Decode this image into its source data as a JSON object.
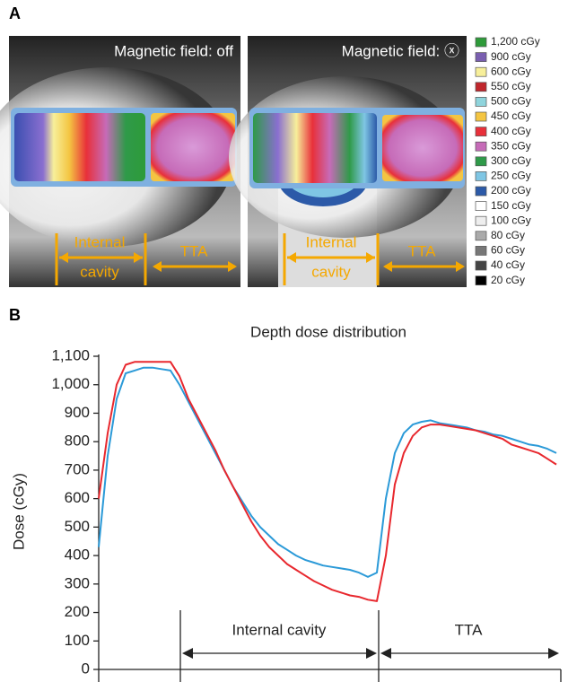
{
  "panels": {
    "a_label": "A",
    "b_label": "B"
  },
  "images": [
    {
      "title": "Magnetic field: off",
      "cavity_label": [
        "Internal",
        "cavity"
      ],
      "tta_label": "TTA"
    },
    {
      "title": "Magnetic field: ⓧ",
      "cavity_label": [
        "Internal",
        "cavity"
      ],
      "tta_label": "TTA"
    }
  ],
  "legend": [
    {
      "label": "1,200 cGy",
      "color": "#2e9b3a"
    },
    {
      "label": "900 cGy",
      "color": "#7a5fb0"
    },
    {
      "label": "600 cGy",
      "color": "#f7ef9a"
    },
    {
      "label": "550 cGy",
      "color": "#c0262c"
    },
    {
      "label": "500 cGy",
      "color": "#8fd4dc"
    },
    {
      "label": "450 cGy",
      "color": "#f4c542"
    },
    {
      "label": "400 cGy",
      "color": "#e8303a"
    },
    {
      "label": "350 cGy",
      "color": "#c66bb8"
    },
    {
      "label": "300 cGy",
      "color": "#2f9a49"
    },
    {
      "label": "250 cGy",
      "color": "#7fc6e4"
    },
    {
      "label": "200 cGy",
      "color": "#2c5aa8"
    },
    {
      "label": "150 cGy",
      "color": "#ffffff"
    },
    {
      "label": "100 cGy",
      "color": "#eeeeee"
    },
    {
      "label": "80 cGy",
      "color": "#aaaaaa"
    },
    {
      "label": "60 cGy",
      "color": "#777777"
    },
    {
      "label": "40 cGy",
      "color": "#444444"
    },
    {
      "label": "20 cGy",
      "color": "#000000"
    }
  ],
  "chart_data": {
    "type": "line",
    "title": "Depth dose distribution",
    "y_label": "Dose (cGy)",
    "ylim": [
      0,
      1100
    ],
    "yticks": [
      0,
      100,
      200,
      300,
      400,
      500,
      600,
      700,
      800,
      900,
      {
        "value": 1000,
        "label": "1,000"
      },
      {
        "value": 1100,
        "label": "1,100"
      }
    ],
    "annotations": [
      "Internal cavity",
      "TTA"
    ],
    "series": [
      {
        "color": "#2b9ad8",
        "values": [
          430,
          750,
          950,
          1040,
          1050,
          1060,
          1060,
          1055,
          1050,
          1000,
          940,
          880,
          820,
          760,
          700,
          640,
          590,
          540,
          500,
          470,
          440,
          420,
          400,
          385,
          375,
          365,
          360,
          355,
          350,
          340,
          325,
          340,
          600,
          760,
          830,
          860,
          870,
          875,
          865,
          860,
          855,
          850,
          840,
          835,
          825,
          820,
          810,
          800,
          790,
          785,
          775,
          760
        ]
      },
      {
        "color": "#e8282e",
        "values": [
          600,
          830,
          1000,
          1070,
          1080,
          1080,
          1080,
          1080,
          1080,
          1030,
          950,
          890,
          830,
          770,
          700,
          640,
          580,
          520,
          470,
          430,
          400,
          370,
          350,
          330,
          310,
          295,
          280,
          270,
          260,
          255,
          245,
          240,
          400,
          650,
          760,
          820,
          850,
          860,
          860,
          855,
          850,
          845,
          840,
          830,
          820,
          810,
          790,
          780,
          770,
          760,
          740,
          720
        ]
      }
    ]
  }
}
